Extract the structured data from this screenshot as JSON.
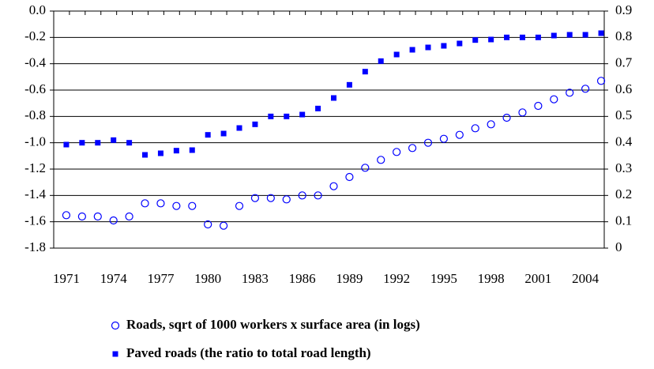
{
  "chart_data": {
    "type": "scatter",
    "categories": [
      "1971",
      null,
      null,
      "1974",
      null,
      null,
      "1977",
      null,
      null,
      "1980",
      null,
      null,
      "1983",
      null,
      null,
      "1986",
      null,
      null,
      "1989",
      null,
      null,
      "1992",
      null,
      null,
      "1995",
      null,
      null,
      "1998",
      null,
      null,
      "2001",
      null,
      null,
      "2004",
      null
    ],
    "series": [
      {
        "name": "Roads, sqrt of 1000 workers x surface area (in logs)",
        "color": "#0000ff",
        "marker": "circle",
        "axis": "y",
        "values": [
          -1.55,
          -1.56,
          -1.56,
          -1.59,
          -1.56,
          -1.46,
          -1.46,
          -1.48,
          -1.48,
          -1.62,
          -1.63,
          -1.48,
          -1.42,
          -1.42,
          -1.43,
          -1.4,
          -1.4,
          -1.33,
          -1.26,
          -1.19,
          -1.13,
          -1.07,
          -1.04,
          -1.0,
          -0.97,
          -0.94,
          -0.89,
          -0.86,
          -0.81,
          -0.77,
          -0.72,
          -0.67,
          -0.62,
          -0.59,
          -0.53
        ]
      },
      {
        "name": "Paved roads (the ratio to total road length)",
        "color": "#0000ff",
        "marker": "square",
        "axis": "y2",
        "values": [
          0.393,
          0.4,
          0.4,
          0.41,
          0.4,
          0.354,
          0.36,
          0.37,
          0.372,
          0.43,
          0.435,
          0.456,
          0.47,
          0.5,
          0.5,
          0.507,
          0.53,
          0.57,
          0.62,
          0.67,
          0.71,
          0.735,
          0.753,
          0.762,
          0.768,
          0.777,
          0.79,
          0.792,
          0.8,
          0.8,
          0.8,
          0.807,
          0.81,
          0.81,
          0.816
        ]
      }
    ],
    "ylim": [
      -1.8,
      0
    ],
    "yticks": [
      {
        "value": 0,
        "label": "0.0"
      },
      -0.2,
      -0.4,
      -0.6,
      -0.8,
      {
        "value": -1,
        "label": "-1.0"
      },
      -1.2,
      -1.4,
      -1.6,
      -1.8
    ],
    "y2lim": [
      0,
      0.9
    ],
    "y2ticks": [
      0,
      0.1,
      0.2,
      0.3,
      0.4,
      0.5,
      0.6,
      0.7,
      0.8,
      0.9
    ],
    "grid": true
  }
}
